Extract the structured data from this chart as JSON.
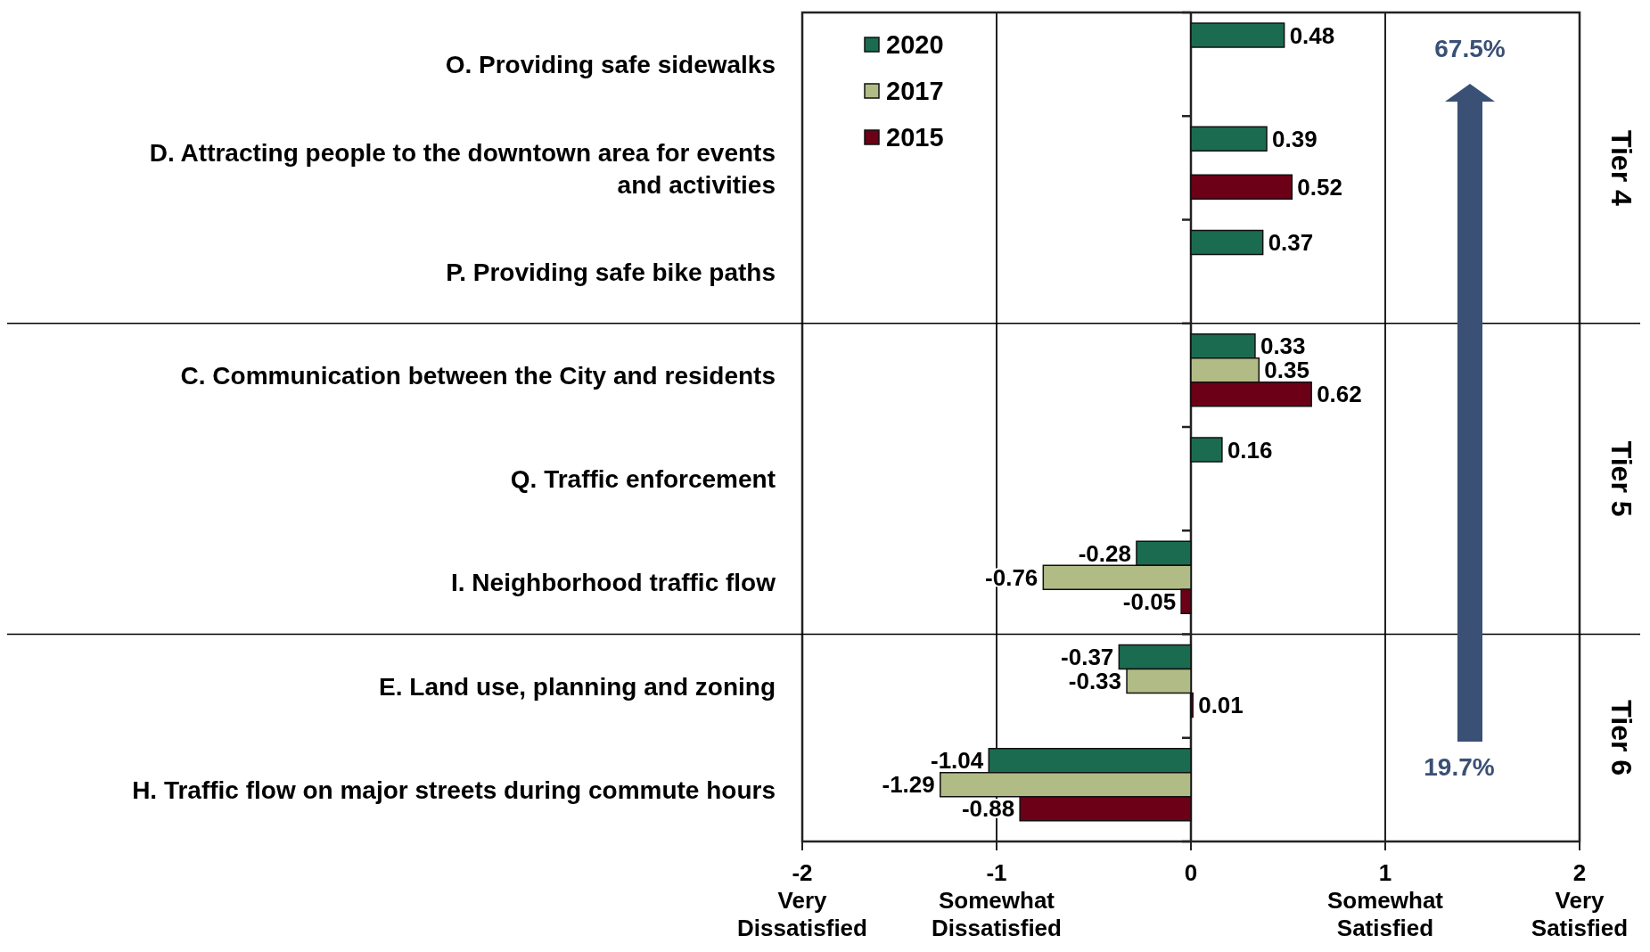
{
  "chart_data": {
    "type": "bar",
    "orientation": "horizontal",
    "categories": [
      "O. Providing safe sidewalks",
      "D. Attracting people to the downtown area for events and activities",
      "P. Providing safe bike paths",
      "C. Communication between the City and residents",
      "Q. Traffic enforcement",
      "I. Neighborhood traffic flow",
      "E. Land use, planning and zoning",
      "H. Traffic flow on major streets during commute hours"
    ],
    "series": [
      {
        "name": "2020",
        "color": "#1b6b50",
        "values": [
          0.48,
          0.39,
          0.37,
          0.33,
          0.16,
          -0.28,
          -0.37,
          -1.04
        ]
      },
      {
        "name": "2017",
        "color": "#b1bb86",
        "values": [
          null,
          null,
          null,
          0.35,
          null,
          -0.76,
          -0.33,
          -1.29
        ]
      },
      {
        "name": "2015",
        "color": "#6b0016",
        "values": [
          null,
          0.52,
          null,
          0.62,
          null,
          -0.05,
          0.01,
          -0.88
        ]
      }
    ],
    "xlim": [
      -2,
      2
    ],
    "xticks": [
      {
        "value": -2,
        "label": "-2\nVery\nDissatisfied"
      },
      {
        "value": -1,
        "label": "-1\nSomewhat\nDissatisfied"
      },
      0,
      {
        "value": 1,
        "label": "1\nSomewhat\nSatisfied"
      },
      {
        "value": 2,
        "label": "2\nVery\nSatisfied"
      }
    ],
    "grid": "x",
    "legend": "top left",
    "data_labels": true,
    "annotations": [
      "Tier 4",
      "Tier 5",
      "Tier 6",
      "67.5%",
      "19.7%"
    ]
  }
}
